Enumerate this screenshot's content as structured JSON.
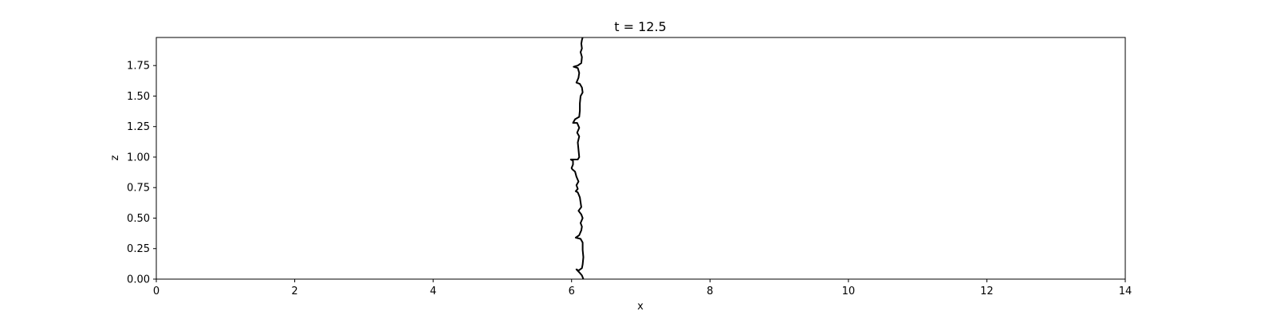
{
  "chart_data": {
    "type": "line",
    "title": "t = 12.5",
    "xlabel": "x",
    "ylabel": "z",
    "xlim": [
      0,
      14
    ],
    "ylim": [
      0,
      1.98
    ],
    "xticks": [
      0,
      2,
      4,
      6,
      8,
      10,
      12,
      14
    ],
    "xtick_labels": [
      "0",
      "2",
      "4",
      "6",
      "8",
      "10",
      "12",
      "14"
    ],
    "yticks": [
      0.0,
      0.25,
      0.5,
      0.75,
      1.0,
      1.25,
      1.5,
      1.75
    ],
    "ytick_labels": [
      "0.00",
      "0.25",
      "0.50",
      "0.75",
      "1.00",
      "1.25",
      "1.50",
      "1.75"
    ],
    "grid": false,
    "line_color": "#000000",
    "series": [
      {
        "points": [
          [
            6.17,
            0.0
          ],
          [
            6.15,
            0.03
          ],
          [
            6.12,
            0.05
          ],
          [
            6.07,
            0.08
          ],
          [
            6.1,
            0.07
          ],
          [
            6.15,
            0.09
          ],
          [
            6.16,
            0.12
          ],
          [
            6.17,
            0.18
          ],
          [
            6.16,
            0.24
          ],
          [
            6.16,
            0.3
          ],
          [
            6.13,
            0.33
          ],
          [
            6.06,
            0.34
          ],
          [
            6.11,
            0.36
          ],
          [
            6.14,
            0.4
          ],
          [
            6.15,
            0.43
          ],
          [
            6.13,
            0.46
          ],
          [
            6.16,
            0.5
          ],
          [
            6.14,
            0.53
          ],
          [
            6.1,
            0.56
          ],
          [
            6.14,
            0.59
          ],
          [
            6.13,
            0.63
          ],
          [
            6.12,
            0.67
          ],
          [
            6.09,
            0.71
          ],
          [
            6.06,
            0.72
          ],
          [
            6.09,
            0.74
          ],
          [
            6.07,
            0.77
          ],
          [
            6.1,
            0.8
          ],
          [
            6.07,
            0.84
          ],
          [
            6.05,
            0.88
          ],
          [
            6.01,
            0.9
          ],
          [
            6.0,
            0.91
          ],
          [
            6.02,
            0.94
          ],
          [
            6.02,
            0.97
          ],
          [
            5.99,
            0.98
          ],
          [
            6.04,
            0.98
          ],
          [
            6.09,
            0.98
          ],
          [
            6.11,
            1.0
          ],
          [
            6.1,
            1.06
          ],
          [
            6.09,
            1.12
          ],
          [
            6.11,
            1.17
          ],
          [
            6.08,
            1.2
          ],
          [
            6.11,
            1.24
          ],
          [
            6.08,
            1.28
          ],
          [
            6.02,
            1.28
          ],
          [
            6.05,
            1.31
          ],
          [
            6.11,
            1.33
          ],
          [
            6.12,
            1.38
          ],
          [
            6.12,
            1.44
          ],
          [
            6.13,
            1.5
          ],
          [
            6.16,
            1.53
          ],
          [
            6.15,
            1.57
          ],
          [
            6.12,
            1.6
          ],
          [
            6.07,
            1.61
          ],
          [
            6.1,
            1.65
          ],
          [
            6.11,
            1.69
          ],
          [
            6.09,
            1.73
          ],
          [
            6.03,
            1.74
          ],
          [
            6.09,
            1.75
          ],
          [
            6.14,
            1.77
          ],
          [
            6.15,
            1.82
          ],
          [
            6.13,
            1.86
          ],
          [
            6.15,
            1.89
          ],
          [
            6.14,
            1.93
          ],
          [
            6.15,
            1.96
          ],
          [
            6.16,
            1.98
          ]
        ]
      }
    ]
  }
}
